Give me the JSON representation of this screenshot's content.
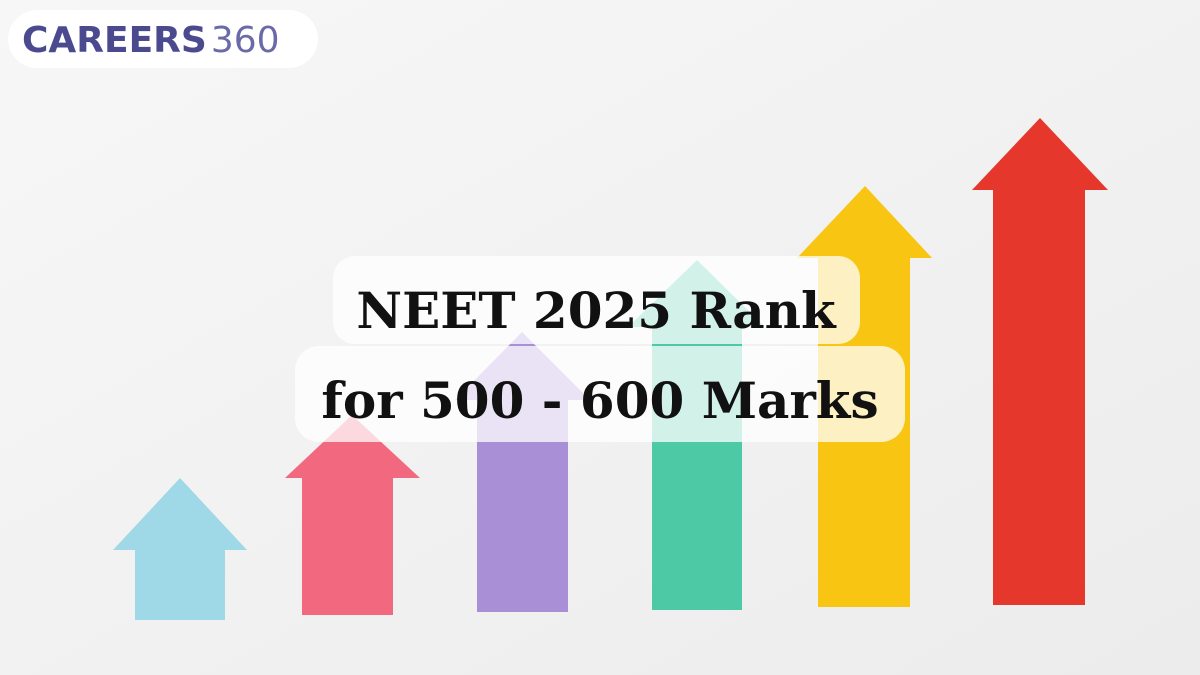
{
  "logo": {
    "brand": "CAREERS",
    "number": "360"
  },
  "headline": {
    "lines": [
      "NEET 2025 Rank",
      "for 500 - 600 Marks"
    ]
  }
}
